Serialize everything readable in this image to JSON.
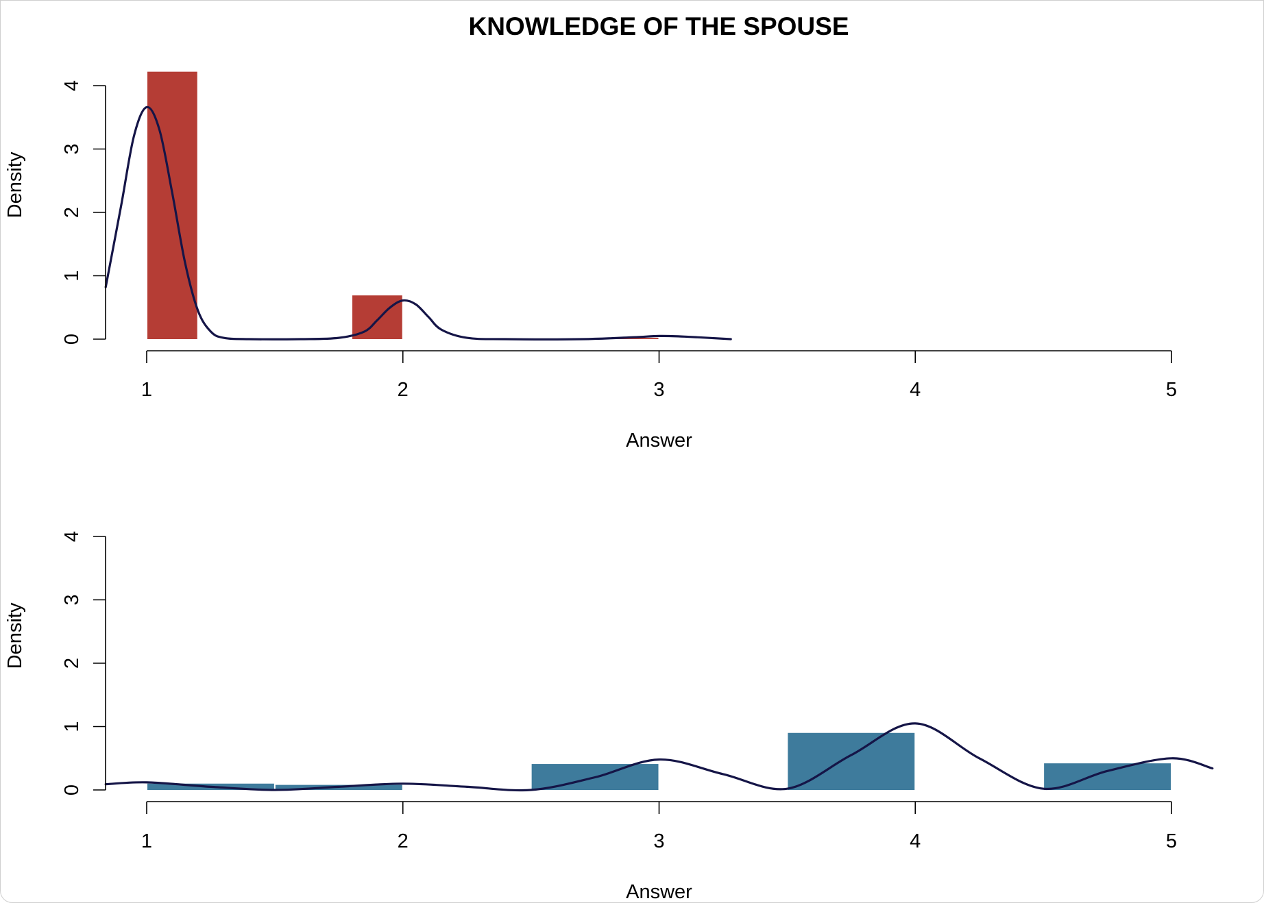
{
  "chart_data": [
    {
      "type": "histogram",
      "title": "KNOWLEDGE OF THE SPOUSE",
      "xlabel": "Answer",
      "ylabel": "Density",
      "xlim": [
        0.84,
        5.2
      ],
      "ylim": [
        0,
        4.2
      ],
      "x_ticks": [
        "1",
        "2",
        "3",
        "4",
        "5"
      ],
      "y_ticks": [
        "0",
        "1",
        "2",
        "3",
        "4"
      ],
      "bar_color": "#b53d35",
      "line_color": "#151547",
      "bins": [
        {
          "x0": 1.0,
          "x1": 1.2,
          "density": 4.22
        },
        {
          "x0": 1.8,
          "x1": 2.0,
          "density": 0.69
        },
        {
          "x0": 2.8,
          "x1": 3.0,
          "density": 0.02
        }
      ],
      "density_curve": {
        "x": [
          0.84,
          0.9,
          0.95,
          1.0,
          1.05,
          1.1,
          1.15,
          1.2,
          1.25,
          1.3,
          1.4,
          1.6,
          1.75,
          1.85,
          1.9,
          1.95,
          2.0,
          2.05,
          2.1,
          2.15,
          2.25,
          2.4,
          2.7,
          2.9,
          3.0,
          3.1,
          3.28
        ],
        "y": [
          0.82,
          2.1,
          3.2,
          3.66,
          3.3,
          2.3,
          1.2,
          0.45,
          0.12,
          0.02,
          0.0,
          0.0,
          0.02,
          0.12,
          0.3,
          0.5,
          0.61,
          0.55,
          0.35,
          0.15,
          0.02,
          0.0,
          0.0,
          0.03,
          0.05,
          0.04,
          0.0
        ]
      }
    },
    {
      "type": "histogram",
      "xlabel": "Answer",
      "ylabel": "Density",
      "xlim": [
        0.84,
        5.2
      ],
      "ylim": [
        0,
        4.2
      ],
      "x_ticks": [
        "1",
        "2",
        "3",
        "4",
        "5"
      ],
      "y_ticks": [
        "0",
        "1",
        "2",
        "3",
        "4"
      ],
      "bar_color": "#3e7b9c",
      "line_color": "#151547",
      "bins": [
        {
          "x0": 1.0,
          "x1": 1.5,
          "density": 0.1
        },
        {
          "x0": 1.5,
          "x1": 2.0,
          "density": 0.08
        },
        {
          "x0": 2.5,
          "x1": 3.0,
          "density": 0.41
        },
        {
          "x0": 3.5,
          "x1": 4.0,
          "density": 0.9
        },
        {
          "x0": 4.5,
          "x1": 5.0,
          "density": 0.42
        }
      ],
      "density_curve": {
        "x": [
          0.84,
          1.0,
          1.25,
          1.5,
          1.75,
          2.0,
          2.25,
          2.5,
          2.75,
          3.0,
          3.25,
          3.5,
          3.75,
          4.0,
          4.25,
          4.5,
          4.75,
          5.0,
          5.16
        ],
        "y": [
          0.09,
          0.12,
          0.05,
          0.0,
          0.05,
          0.1,
          0.05,
          0.0,
          0.2,
          0.48,
          0.25,
          0.02,
          0.55,
          1.05,
          0.5,
          0.02,
          0.3,
          0.5,
          0.34
        ]
      }
    }
  ]
}
